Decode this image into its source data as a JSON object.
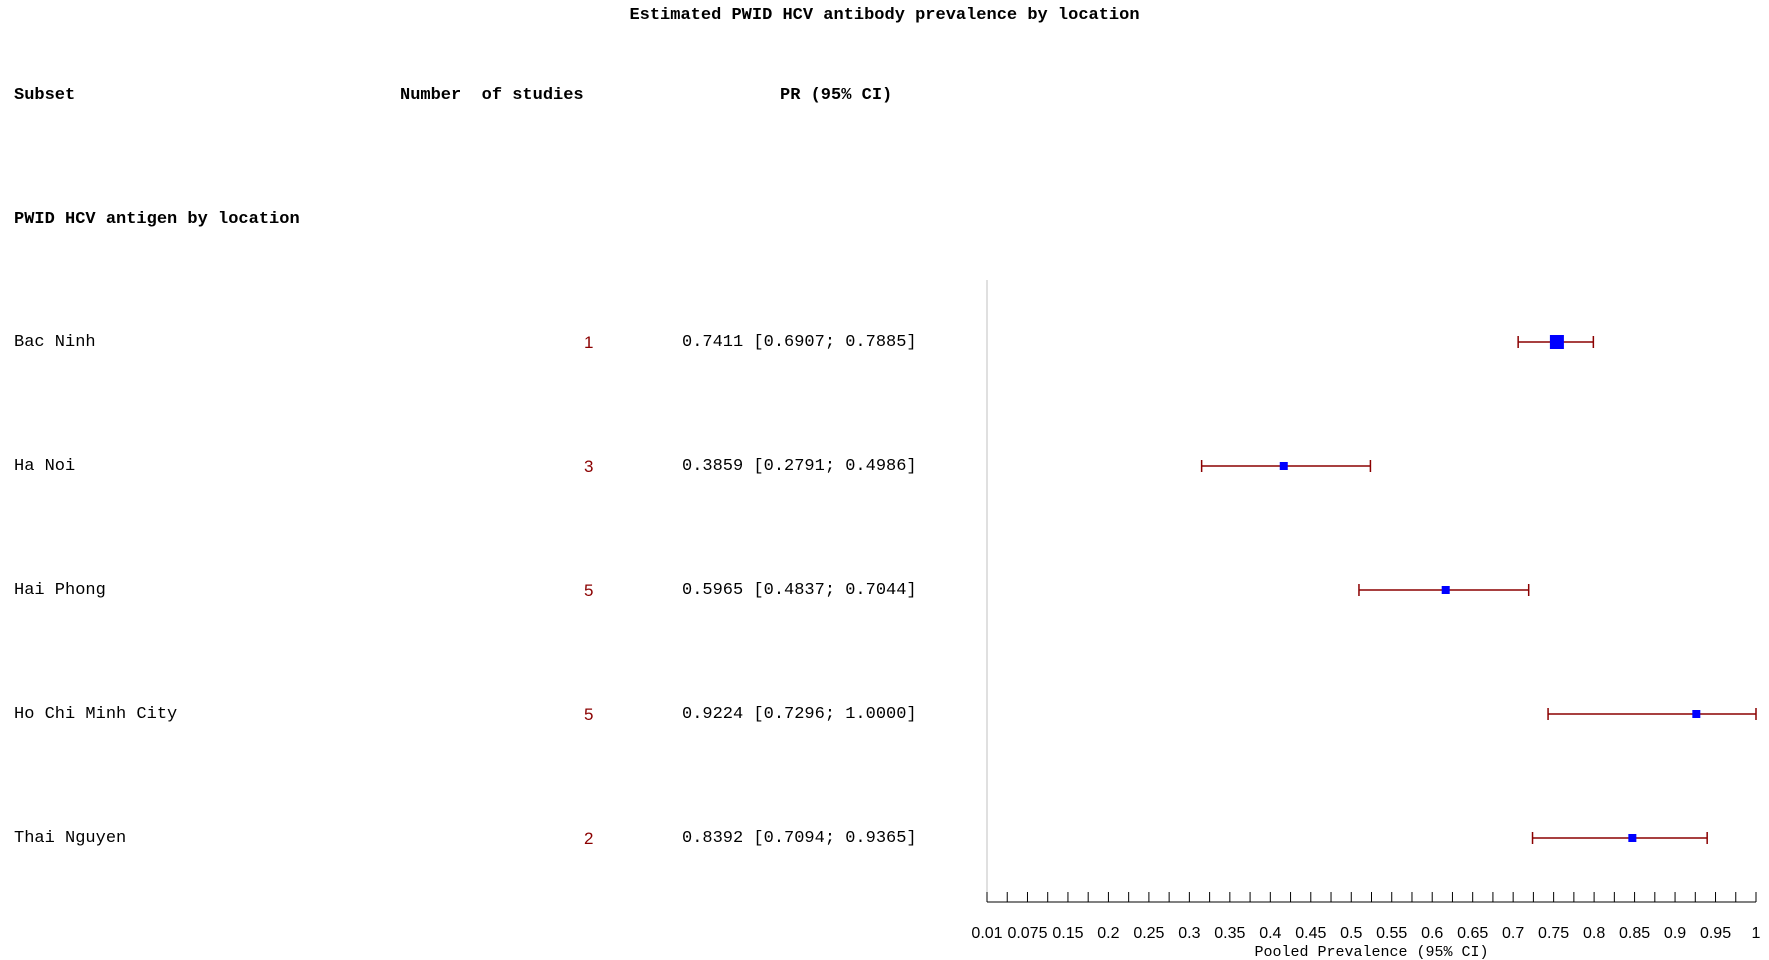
{
  "chart_data": {
    "type": "forest",
    "title": "Estimated PWID HCV antibody prevalence by location",
    "columns": {
      "subset": "Subset",
      "n_studies": "Number  of studies",
      "pr": "PR (95% CI)"
    },
    "group_label": "PWID HCV antigen by location",
    "rows": [
      {
        "label": "Bac Ninh",
        "n": "1",
        "pr_text": "0.7411 [0.6907; 0.7885]",
        "est": 0.7411,
        "lo": 0.6907,
        "hi": 0.7885
      },
      {
        "label": "Ha Noi",
        "n": "3",
        "pr_text": "0.3859 [0.2791; 0.4986]",
        "est": 0.3859,
        "lo": 0.2791,
        "hi": 0.4986
      },
      {
        "label": "Hai Phong",
        "n": "5",
        "pr_text": "0.5965 [0.4837; 0.7044]",
        "est": 0.5965,
        "lo": 0.4837,
        "hi": 0.7044
      },
      {
        "label": "Ho Chi Minh City",
        "n": "5",
        "pr_text": "0.9224 [0.7296; 1.0000]",
        "est": 0.9224,
        "lo": 0.7296,
        "hi": 1.0
      },
      {
        "label": "Thai Nguyen",
        "n": "2",
        "pr_text": "0.8392 [0.7094; 0.9365]",
        "est": 0.8392,
        "lo": 0.7094,
        "hi": 0.9365
      }
    ],
    "xlabel": "Pooled Prevalence (95% CI)",
    "xlim": [
      0,
      1
    ],
    "xticks": [
      "0.01",
      "0.075",
      "0.15",
      "0.2",
      "0.25",
      "0.3",
      "0.35",
      "0.4",
      "0.45",
      "0.5",
      "0.55",
      "0.6",
      "0.65",
      "0.7",
      "0.75",
      "0.8",
      "0.85",
      "0.9",
      "0.95",
      "1"
    ],
    "colors": {
      "point": "#0000ff",
      "ci": "#8b0000",
      "n_text": "#8b0000",
      "axis": "#000000",
      "ref_line": "#c0c0c0"
    }
  }
}
